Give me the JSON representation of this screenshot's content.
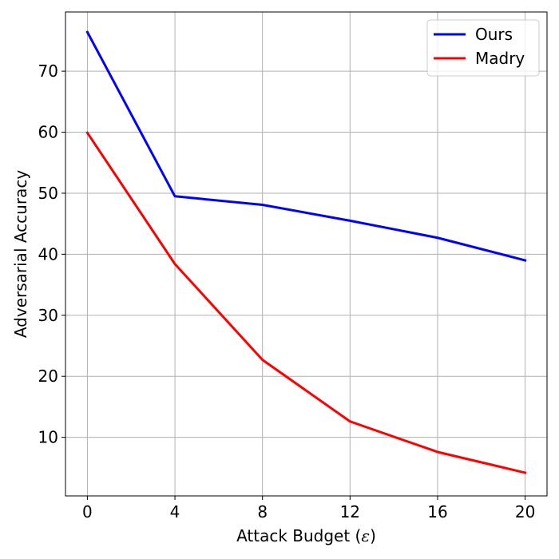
{
  "chart_data": {
    "type": "line",
    "title": "",
    "xlabel": "Attack Budget (",
    "xlabel_symbol": "ε",
    "xlabel_suffix": ")",
    "ylabel": "Adversarial Accuracy",
    "x": [
      0,
      4,
      8,
      12,
      16,
      20
    ],
    "x_tick_labels": [
      "0",
      "4",
      "8",
      "12",
      "16",
      "20"
    ],
    "y_ticks": [
      10,
      20,
      30,
      40,
      50,
      60,
      70
    ],
    "y_tick_labels": [
      "10",
      "20",
      "30",
      "40",
      "50",
      "60",
      "70"
    ],
    "xlim": [
      -1,
      21
    ],
    "ylim": [
      0.4,
      79.7
    ],
    "grid": true,
    "legend_position": "top-right",
    "series": [
      {
        "name": "Ours",
        "color": "#0000ff",
        "values": [
          76.4,
          49.5,
          48.1,
          45.5,
          42.7,
          39.0
        ]
      },
      {
        "name": "Madry",
        "color": "#ff0000",
        "values": [
          59.9,
          38.4,
          22.7,
          12.6,
          7.6,
          4.2
        ]
      }
    ]
  }
}
